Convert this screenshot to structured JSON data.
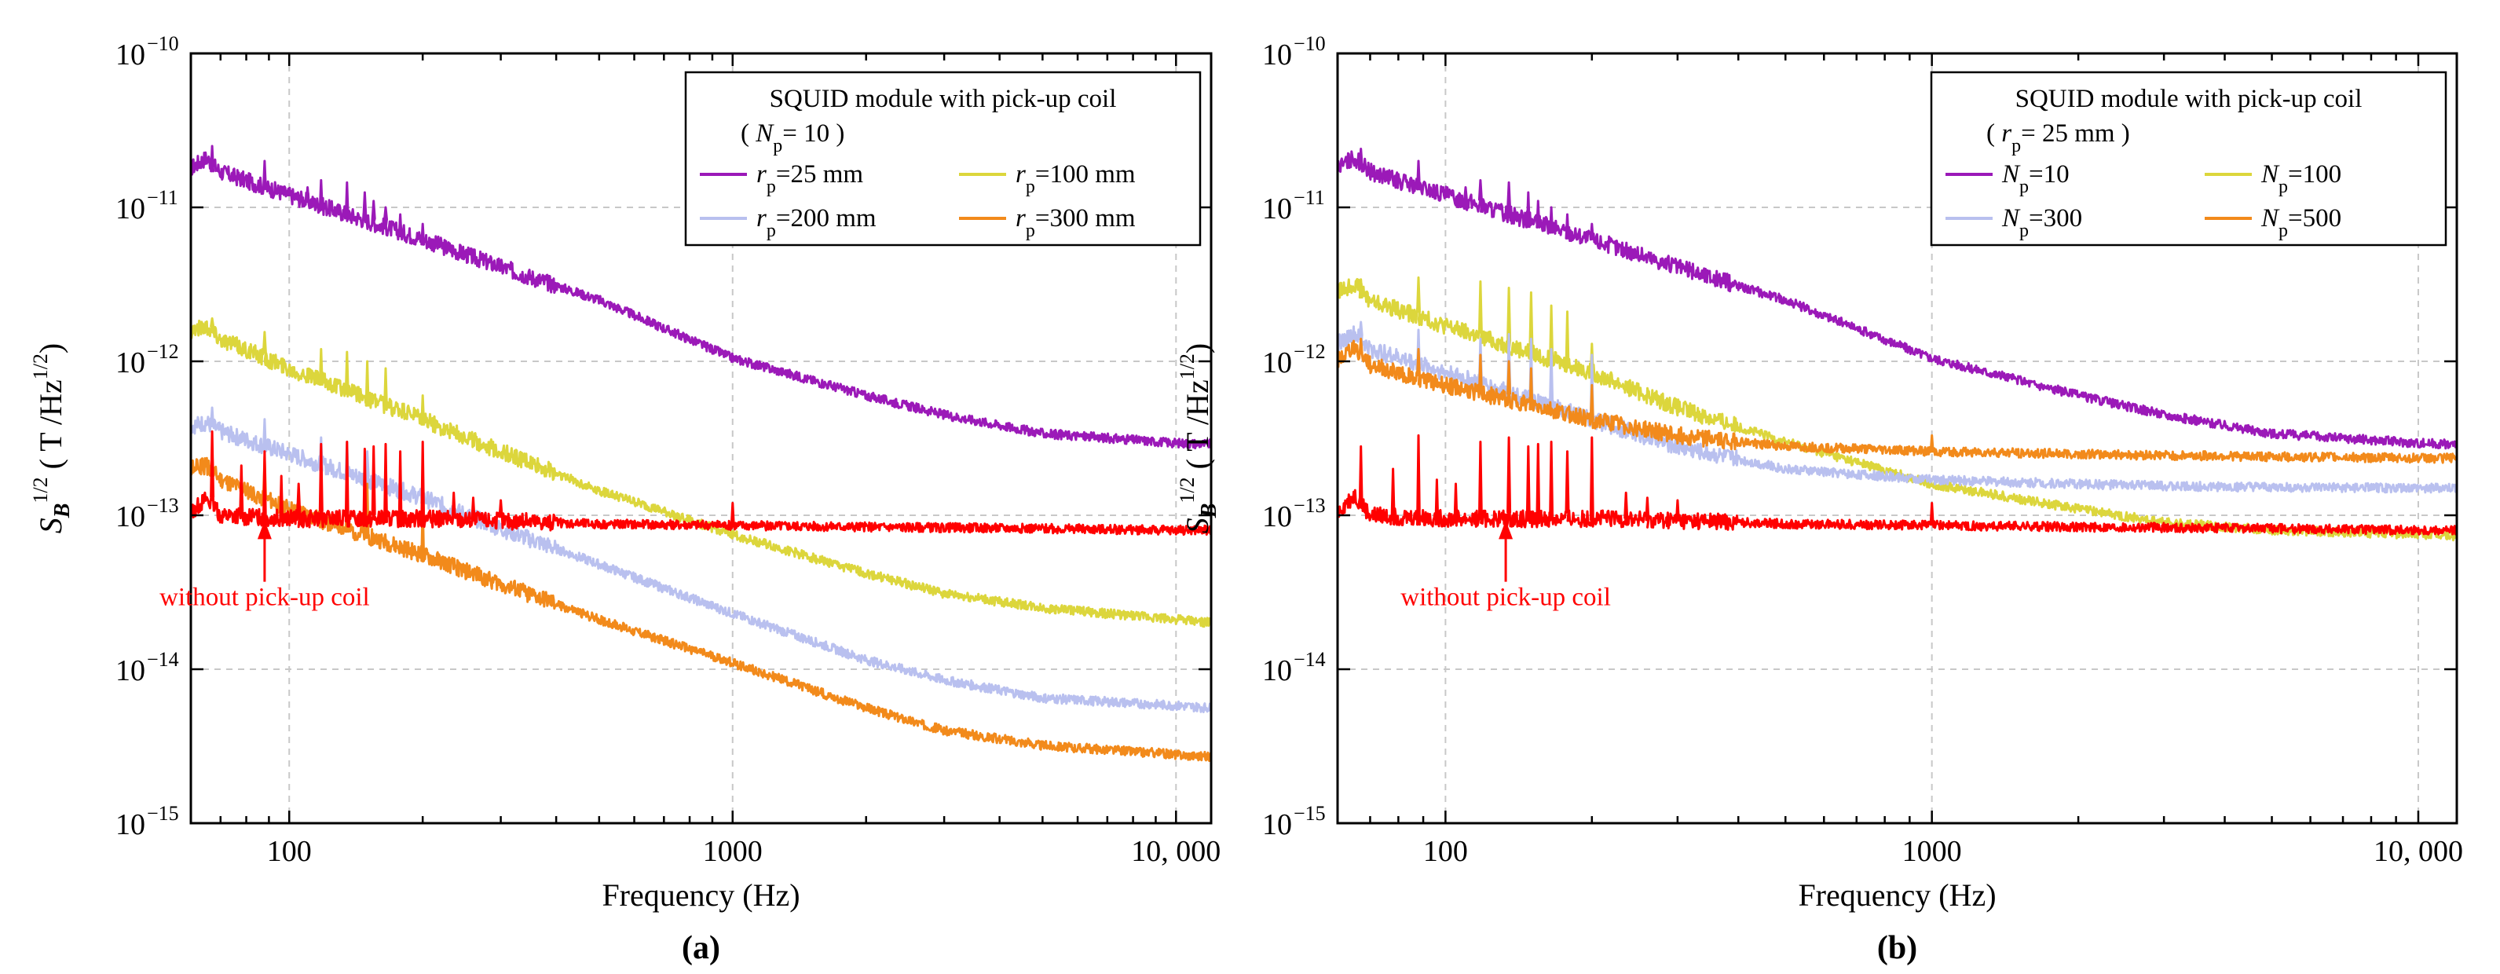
{
  "chart_data": [
    {
      "type": "line",
      "panel_label": "(a)",
      "xlabel": "Frequency (Hz)",
      "ylabel": {
        "S": "S",
        "sub": "B",
        "sup": "1/2",
        "unit_open": " ( T /Hz",
        "unit_sup": "1/2",
        "unit_close": ")"
      },
      "xscale": "log",
      "yscale": "log",
      "xlim": [
        60,
        12000
      ],
      "ylim": [
        1e-15,
        1e-10
      ],
      "grid": true,
      "x_ticks": [
        {
          "value": 100,
          "label": "100"
        },
        {
          "value": 1000,
          "label": "1000"
        },
        {
          "value": 10000,
          "label": "10, 000"
        }
      ],
      "y_ticks": [
        {
          "value": 1e-15,
          "base": "10",
          "exp": "−15"
        },
        {
          "value": 1e-14,
          "base": "10",
          "exp": "−14"
        },
        {
          "value": 1e-13,
          "base": "10",
          "exp": "−13"
        },
        {
          "value": 1e-12,
          "base": "10",
          "exp": "−12"
        },
        {
          "value": 1e-11,
          "base": "10",
          "exp": "−11"
        },
        {
          "value": 1e-10,
          "base": "10",
          "exp": "−10"
        }
      ],
      "legend": {
        "position": "top-right",
        "title": "SQUID module with pick-up coil",
        "subtitle": {
          "open": "( ",
          "var": "N",
          "sub": "p",
          "text": "= 10 )"
        }
      },
      "series": [
        {
          "name": {
            "var": "r",
            "sub": "p",
            "text": "=25 mm"
          },
          "color": "#9b19b8",
          "x": [
            60,
            65,
            70,
            100,
            200,
            300,
            500,
            1000,
            2000,
            3000,
            5000,
            10000,
            12000
          ],
          "y": [
            1.8e-11,
            2.1e-11,
            1.7e-11,
            1.2e-11,
            6.2e-12,
            4.1e-12,
            2.5e-12,
            1.05e-12,
            6e-13,
            4.5e-13,
            3.4e-13,
            2.95e-13,
            2.9e-13
          ],
          "spikes": [
            [
              67,
              2.5e-11
            ],
            [
              88,
              2e-11
            ],
            [
              100,
              1.3e-11
            ],
            [
              110,
              1.35e-11
            ],
            [
              118,
              1.5e-11
            ],
            [
              135,
              1.45e-11
            ],
            [
              148,
              1.25e-11
            ],
            [
              155,
              1.1e-11
            ],
            [
              165,
              1e-11
            ],
            [
              178,
              9e-12
            ],
            [
              200,
              7.8e-12
            ]
          ]
        },
        {
          "name": {
            "var": "r",
            "sub": "p",
            "text": "=100 mm"
          },
          "color": "#dcd63c",
          "x": [
            60,
            65,
            70,
            100,
            200,
            300,
            500,
            1000,
            2000,
            3000,
            5000,
            10000,
            12000
          ],
          "y": [
            1.6e-12,
            1.7e-12,
            1.4e-12,
            9e-13,
            4.2e-13,
            2.6e-13,
            1.45e-13,
            7.5e-14,
            4.2e-14,
            3.1e-14,
            2.5e-14,
            2.1e-14,
            2e-14
          ],
          "spikes": [
            [
              67,
              1.9e-12
            ],
            [
              88,
              1.55e-12
            ],
            [
              118,
              1.2e-12
            ],
            [
              135,
              1.15e-12
            ],
            [
              150,
              1e-12
            ],
            [
              165,
              9e-13
            ],
            [
              200,
              6e-13
            ]
          ]
        },
        {
          "name": {
            "var": "r",
            "sub": "p",
            "text": "=200 mm"
          },
          "color": "#b9c0ef",
          "x": [
            60,
            65,
            70,
            100,
            200,
            300,
            500,
            1000,
            2000,
            3000,
            5000,
            10000,
            12000
          ],
          "y": [
            3.8e-13,
            4e-13,
            3.5e-13,
            2.5e-13,
            1.3e-13,
            8.2e-14,
            4.8e-14,
            2.3e-14,
            1.15e-14,
            8.5e-15,
            6.5e-15,
            5.8e-15,
            5.6e-15
          ],
          "spikes": [
            [
              67,
              5e-13
            ],
            [
              88,
              4.2e-13
            ],
            [
              118,
              3.2e-13
            ],
            [
              135,
              3e-13
            ],
            [
              150,
              2.6e-13
            ],
            [
              200,
              1.9e-13
            ]
          ]
        },
        {
          "name": {
            "var": "r",
            "sub": "p",
            "text": "=300 mm"
          },
          "color": "#f28a1b",
          "x": [
            60,
            65,
            70,
            100,
            200,
            300,
            500,
            1000,
            2000,
            3000,
            5000,
            10000,
            12000
          ],
          "y": [
            2e-13,
            2.1e-13,
            1.7e-13,
            1.1e-13,
            5.5e-14,
            3.6e-14,
            2.1e-14,
            1.1e-14,
            5.6e-15,
            4e-15,
            3.2e-15,
            2.8e-15,
            2.7e-15
          ],
          "spikes": [
            [
              67,
              2.6e-13
            ],
            [
              88,
              2.4e-13
            ],
            [
              118,
              2e-13
            ],
            [
              135,
              1.8e-13
            ],
            [
              150,
              1.6e-13
            ],
            [
              200,
              1.2e-13
            ]
          ]
        },
        {
          "name": {
            "var": "",
            "sub": "",
            "text": "without pick-up coil"
          },
          "color": "#ff0000",
          "in_legend": false,
          "x": [
            60,
            65,
            70,
            100,
            200,
            300,
            500,
            1000,
            2000,
            5000,
            10000,
            12000
          ],
          "y": [
            1.05e-13,
            1.3e-13,
            1e-13,
            9.5e-14,
            9.5e-14,
            9.2e-14,
            8.8e-14,
            8.6e-14,
            8.4e-14,
            8.2e-14,
            8e-14,
            8e-14
          ],
          "spikes": [
            [
              67,
              3.5e-13
            ],
            [
              78,
              2.1e-13
            ],
            [
              88,
              2.6e-13
            ],
            [
              96,
              1.8e-13
            ],
            [
              105,
              1.6e-13
            ],
            [
              118,
              2.9e-13
            ],
            [
              135,
              3e-13
            ],
            [
              148,
              2.7e-13
            ],
            [
              155,
              2.8e-13
            ],
            [
              165,
              2.9e-13
            ],
            [
              178,
              2.6e-13
            ],
            [
              200,
              3e-13
            ],
            [
              235,
              1.4e-13
            ],
            [
              260,
              1.3e-13
            ],
            [
              300,
              1.25e-13
            ],
            [
              1000,
              1.2e-13
            ]
          ]
        }
      ],
      "annotation": {
        "text": "without pick-up coil",
        "x": 88,
        "y_tip": 9.5e-14,
        "y_base": 3.7e-14,
        "label_y": 2.6e-14,
        "color": "#ff0000"
      }
    },
    {
      "type": "line",
      "panel_label": "(b)",
      "xlabel": "Frequency (Hz)",
      "ylabel": {
        "S": "S",
        "sub": "B",
        "sup": "1/2",
        "unit_open": " ( T /Hz",
        "unit_sup": "1/2",
        "unit_close": ")"
      },
      "xscale": "log",
      "yscale": "log",
      "xlim": [
        60,
        12000
      ],
      "ylim": [
        1e-15,
        1e-10
      ],
      "grid": true,
      "x_ticks": [
        {
          "value": 100,
          "label": "100"
        },
        {
          "value": 1000,
          "label": "1000"
        },
        {
          "value": 10000,
          "label": "10, 000"
        }
      ],
      "y_ticks": [
        {
          "value": 1e-15,
          "base": "10",
          "exp": "−15"
        },
        {
          "value": 1e-14,
          "base": "10",
          "exp": "−14"
        },
        {
          "value": 1e-13,
          "base": "10",
          "exp": "−13"
        },
        {
          "value": 1e-12,
          "base": "10",
          "exp": "−12"
        },
        {
          "value": 1e-11,
          "base": "10",
          "exp": "−11"
        },
        {
          "value": 1e-10,
          "base": "10",
          "exp": "−10"
        }
      ],
      "legend": {
        "position": "top-right",
        "title": "SQUID module with pick-up coil",
        "subtitle": {
          "open": "( ",
          "var": "r",
          "sub": "p",
          "text": "= 25 mm )"
        }
      },
      "series": [
        {
          "name": {
            "var": "N",
            "sub": "p",
            "text": "=10"
          },
          "color": "#9b19b8",
          "x": [
            60,
            65,
            70,
            100,
            200,
            300,
            500,
            1000,
            2000,
            3000,
            5000,
            10000,
            12000
          ],
          "y": [
            1.8e-11,
            2.1e-11,
            1.7e-11,
            1.2e-11,
            6.2e-12,
            4.1e-12,
            2.5e-12,
            1.05e-12,
            6e-13,
            4.5e-13,
            3.4e-13,
            2.95e-13,
            2.9e-13
          ],
          "spikes": [
            [
              67,
              2.4e-11
            ],
            [
              88,
              2e-11
            ],
            [
              100,
              1.3e-11
            ],
            [
              110,
              1.35e-11
            ],
            [
              118,
              1.5e-11
            ],
            [
              135,
              1.45e-11
            ],
            [
              148,
              1.25e-11
            ],
            [
              155,
              1.1e-11
            ],
            [
              165,
              1e-11
            ],
            [
              178,
              9e-12
            ],
            [
              200,
              7.8e-12
            ]
          ]
        },
        {
          "name": {
            "var": "N",
            "sub": "p",
            "text": "=100"
          },
          "color": "#dcd63c",
          "x": [
            60,
            65,
            70,
            100,
            200,
            300,
            500,
            1000,
            2000,
            3000,
            5000,
            10000,
            12000
          ],
          "y": [
            2.8e-12,
            3.2e-12,
            2.5e-12,
            1.7e-12,
            8.5e-13,
            5e-13,
            3e-13,
            1.6e-13,
            1.1e-13,
            9e-14,
            8e-14,
            7.5e-14,
            7.3e-14
          ],
          "spikes": [
            [
              67,
              3.4e-12
            ],
            [
              88,
              3.5e-12
            ],
            [
              118,
              3.3e-12
            ],
            [
              135,
              3e-12
            ],
            [
              150,
              2.8e-12
            ],
            [
              165,
              2.3e-12
            ],
            [
              178,
              2.1e-12
            ],
            [
              200,
              1.3e-12
            ]
          ]
        },
        {
          "name": {
            "var": "N",
            "sub": "p",
            "text": "=300"
          },
          "color": "#b9c0ef",
          "x": [
            60,
            65,
            70,
            100,
            200,
            300,
            500,
            1000,
            2000,
            3000,
            5000,
            10000,
            12000
          ],
          "y": [
            1.3e-12,
            1.5e-12,
            1.2e-12,
            8.5e-13,
            4.2e-13,
            2.8e-13,
            2e-13,
            1.7e-13,
            1.6e-13,
            1.55e-13,
            1.52e-13,
            1.5e-13,
            1.5e-13
          ],
          "spikes": [
            [
              67,
              1.8e-12
            ],
            [
              88,
              1.6e-12
            ],
            [
              118,
              1.4e-12
            ],
            [
              135,
              1.5e-12
            ],
            [
              150,
              1.4e-12
            ],
            [
              165,
              1.2e-12
            ],
            [
              200,
              1.1e-12
            ]
          ]
        },
        {
          "name": {
            "var": "N",
            "sub": "p",
            "text": "=500"
          },
          "color": "#f28a1b",
          "x": [
            60,
            65,
            70,
            100,
            200,
            300,
            500,
            1000,
            2000,
            3000,
            5000,
            10000,
            12000
          ],
          "y": [
            1e-12,
            1.25e-12,
            9.5e-13,
            7e-13,
            4.2e-13,
            3.3e-13,
            2.8e-13,
            2.6e-13,
            2.5e-13,
            2.45e-13,
            2.4e-13,
            2.35e-13,
            2.35e-13
          ],
          "spikes": [
            [
              67,
              1.4e-12
            ],
            [
              88,
              1.2e-12
            ],
            [
              118,
              1.1e-12
            ],
            [
              135,
              1e-12
            ],
            [
              150,
              9e-13
            ],
            [
              200,
              7e-13
            ],
            [
              1000,
              3.3e-13
            ]
          ]
        },
        {
          "name": {
            "var": "",
            "sub": "",
            "text": "without pick-up coil"
          },
          "color": "#ff0000",
          "in_legend": false,
          "x": [
            60,
            65,
            70,
            100,
            200,
            300,
            500,
            1000,
            2000,
            5000,
            10000,
            12000
          ],
          "y": [
            1.05e-13,
            1.35e-13,
            1e-13,
            9.5e-14,
            9.5e-14,
            9.2e-14,
            8.8e-14,
            8.6e-14,
            8.4e-14,
            8.2e-14,
            8e-14,
            8e-14
          ],
          "spikes": [
            [
              67,
              2.8e-13
            ],
            [
              78,
              2e-13
            ],
            [
              88,
              3.3e-13
            ],
            [
              96,
              1.7e-13
            ],
            [
              105,
              1.6e-13
            ],
            [
              118,
              3e-13
            ],
            [
              135,
              3.2e-13
            ],
            [
              148,
              2.8e-13
            ],
            [
              155,
              2.9e-13
            ],
            [
              165,
              3e-13
            ],
            [
              178,
              2.6e-13
            ],
            [
              200,
              3.2e-13
            ],
            [
              235,
              1.4e-13
            ],
            [
              260,
              1.3e-13
            ],
            [
              300,
              1.25e-13
            ],
            [
              1000,
              1.2e-13
            ]
          ]
        }
      ],
      "annotation": {
        "text": "without pick-up coil",
        "x": 133,
        "y_tip": 9.5e-14,
        "y_base": 3.7e-14,
        "label_y": 2.6e-14,
        "color": "#ff0000"
      }
    }
  ]
}
